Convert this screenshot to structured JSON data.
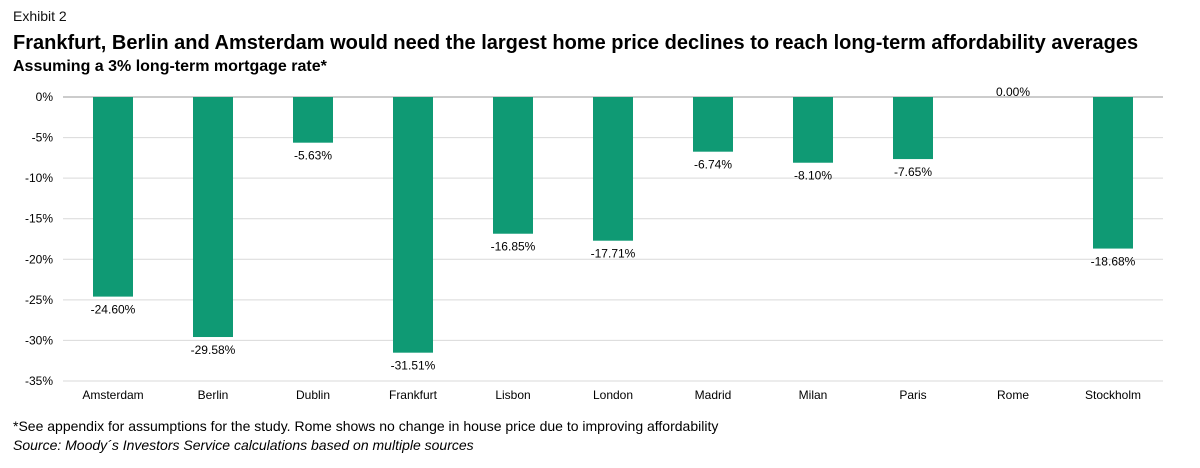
{
  "exhibit_label": "Exhibit 2",
  "title": "Frankfurt, Berlin and Amsterdam would need the largest home price declines to reach long-term affordability averages",
  "subtitle": "Assuming a 3% long-term mortgage rate*",
  "footnote": "*See appendix for assumptions for the study. Rome shows no change in house price due to improving affordability",
  "source": "Source: Moody´s Investors Service calculations based on multiple sources",
  "colors": {
    "bar": "#0f9a74",
    "gridline": "#d9d9d9",
    "axis": "#999999"
  },
  "chart_data": {
    "type": "bar",
    "title": "Frankfurt, Berlin and Amsterdam would need the largest home price declines to reach long-term affordability averages",
    "subtitle": "Assuming a 3% long-term mortgage rate*",
    "xlabel": "",
    "ylabel": "",
    "ylim": [
      -35,
      0
    ],
    "yticks": [
      0,
      -5,
      -10,
      -15,
      -20,
      -25,
      -30,
      -35
    ],
    "ytick_labels": [
      "0%",
      "-5%",
      "-10%",
      "-15%",
      "-20%",
      "-25%",
      "-30%",
      "-35%"
    ],
    "grid": true,
    "categories": [
      "Amsterdam",
      "Berlin",
      "Dublin",
      "Frankfurt",
      "Lisbon",
      "London",
      "Madrid",
      "Milan",
      "Paris",
      "Rome",
      "Stockholm"
    ],
    "values": [
      -24.6,
      -29.58,
      -5.63,
      -31.51,
      -16.85,
      -17.71,
      -6.74,
      -8.1,
      -7.65,
      0.0,
      -18.68
    ],
    "data_labels": [
      "-24.60%",
      "-29.58%",
      "-5.63%",
      "-31.51%",
      "-16.85%",
      "-17.71%",
      "-6.74%",
      "-8.10%",
      "-7.65%",
      "0.00%",
      "-18.68%"
    ]
  }
}
